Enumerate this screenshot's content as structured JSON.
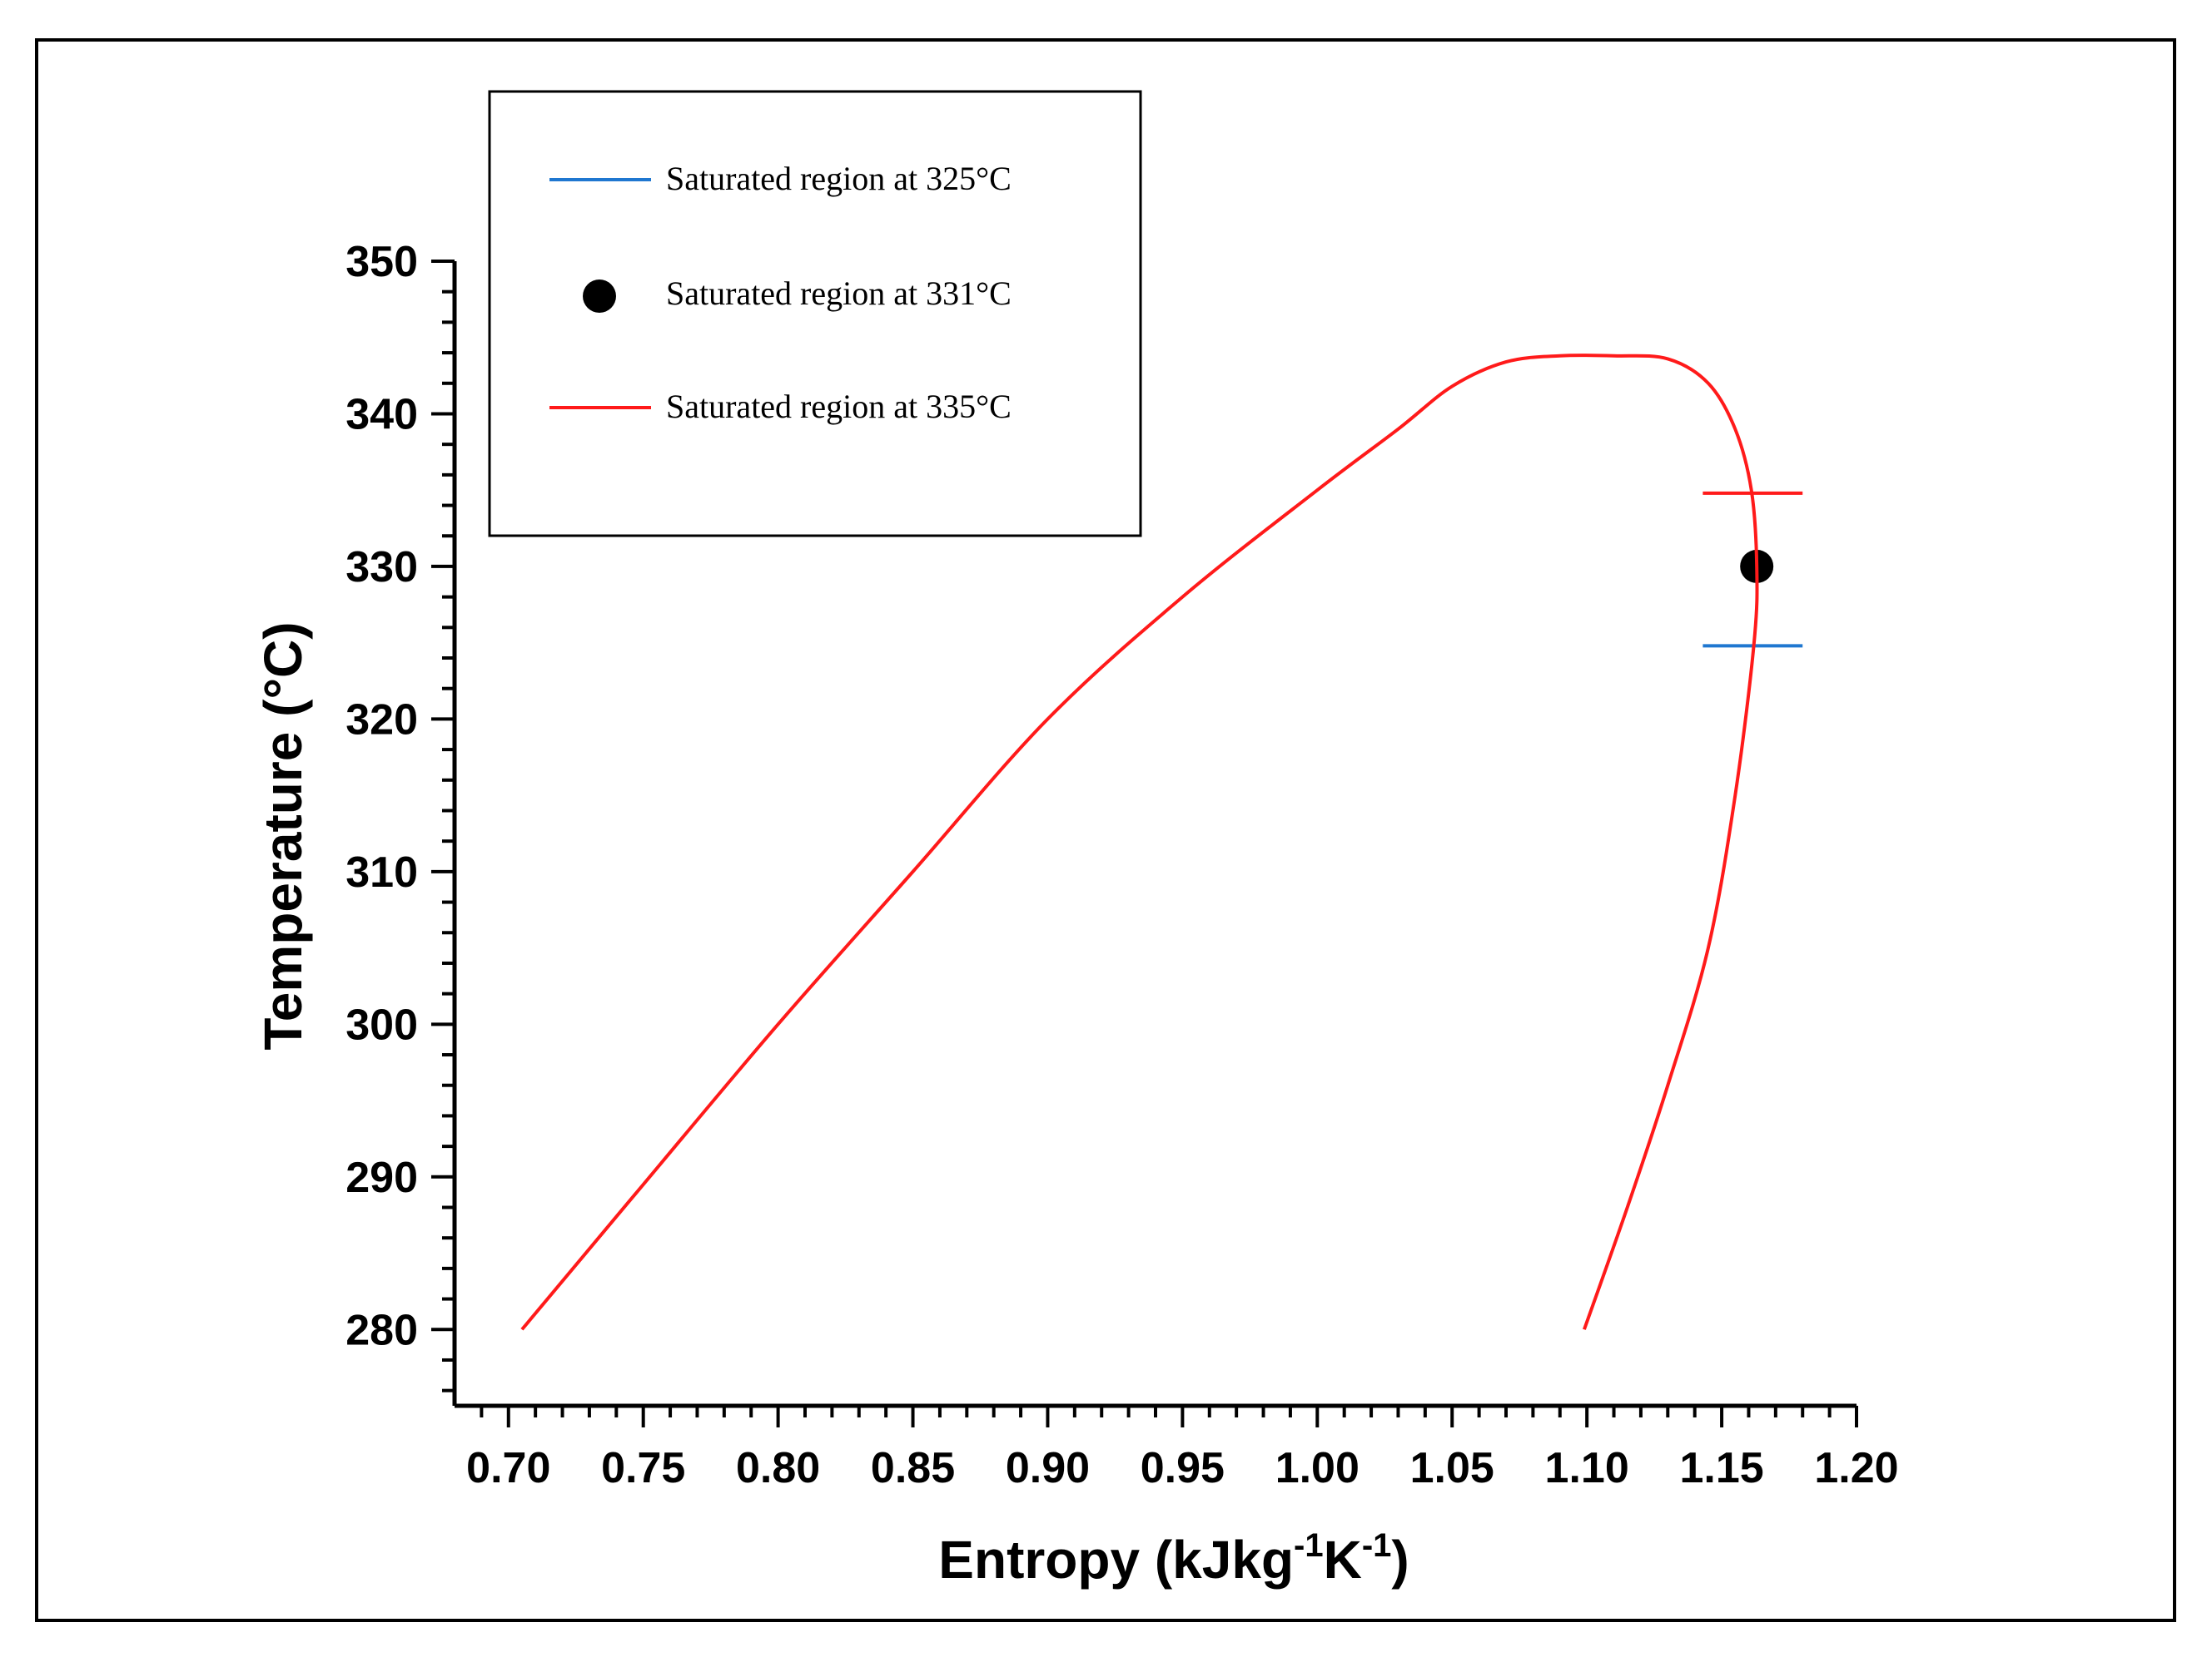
{
  "chart_data": {
    "type": "line",
    "title": "",
    "xlabel": "Entropy (kJkg",
    "xlabel_sup1": "-1",
    "xlabel_mid": "K",
    "xlabel_sup2": "-1",
    "xlabel_end": ")",
    "ylabel": "Temperature (°C)",
    "xlim": [
      0.68,
      1.2
    ],
    "ylim": [
      275,
      350
    ],
    "x_ticks": [
      "0.70",
      "0.75",
      "0.80",
      "0.85",
      "0.90",
      "0.95",
      "1.00",
      "1.05",
      "1.10",
      "1.15",
      "1.20"
    ],
    "y_ticks": [
      "280",
      "290",
      "300",
      "310",
      "320",
      "330",
      "340",
      "350"
    ],
    "grid": false,
    "legend_position": "top-left",
    "series": [
      {
        "name": "Saturated region at 325°C",
        "color": "#1f77d0",
        "style": "segment",
        "x": [
          1.143,
          1.18
        ],
        "y": [
          324.8,
          324.8
        ]
      },
      {
        "name": "Saturated region at 331°C",
        "color": "#000000",
        "style": "marker",
        "x": [
          1.163
        ],
        "y": [
          330.0
        ]
      },
      {
        "name": "Saturated region at 335°C",
        "color": "#ff1a1a",
        "style": "line",
        "x": [
          0.705,
          0.75,
          0.8,
          0.85,
          0.9,
          0.95,
          1.0,
          1.03,
          1.05,
          1.07,
          1.09,
          1.11,
          1.13,
          1.145,
          1.155,
          1.161,
          1.163,
          1.162,
          1.155,
          1.145,
          1.13,
          1.115,
          1.099
        ],
        "y": [
          280.0,
          289.5,
          300.0,
          310.0,
          320.0,
          328.0,
          335.0,
          339.0,
          341.8,
          343.4,
          343.8,
          343.8,
          343.6,
          342.0,
          339.0,
          335.0,
          330.0,
          325.0,
          315.0,
          305.0,
          296.0,
          288.0,
          280.0
        ]
      },
      {
        "name": "335°C marker line",
        "color": "#ff1a1a",
        "style": "segment",
        "x": [
          1.143,
          1.18
        ],
        "y": [
          334.8,
          334.8
        ]
      }
    ]
  },
  "legend": {
    "items": [
      {
        "label": "Saturated region at 325°C",
        "kind": "line",
        "color": "#1f77d0"
      },
      {
        "label": "Saturated region at 331°C",
        "kind": "dot",
        "color": "#000000"
      },
      {
        "label": "Saturated region at 335°C",
        "kind": "line",
        "color": "#ff1a1a"
      }
    ]
  }
}
